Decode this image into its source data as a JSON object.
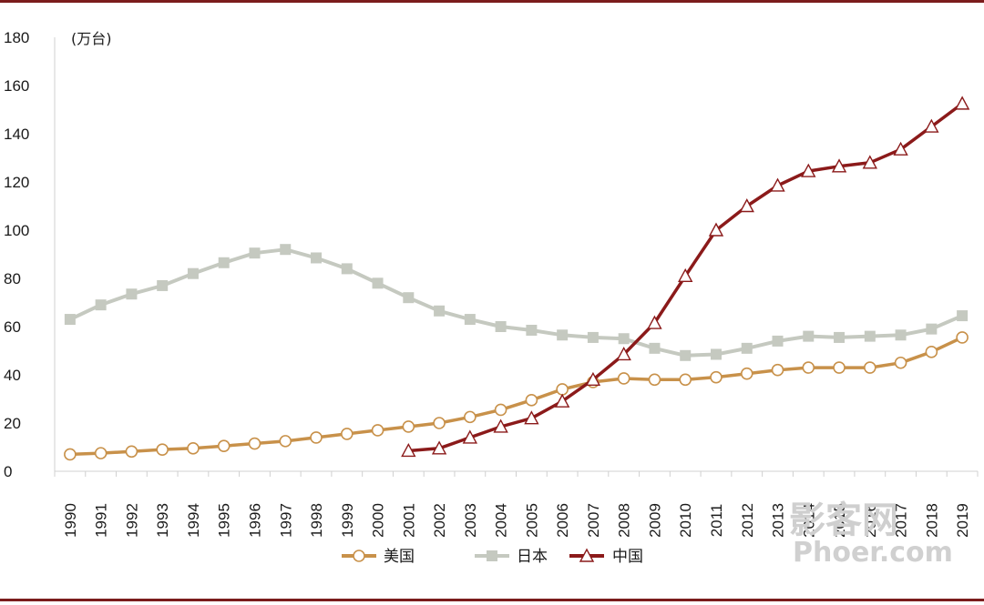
{
  "colors": {
    "frame": "#7b1c1c",
    "usa": "#c8914a",
    "japan": "#c5c9c0",
    "china": "#8b1a1a",
    "axis": "#d0d0d0",
    "watermark": "#cfcfcf",
    "watermark_dot": "#e05050"
  },
  "watermark": {
    "cn": "影客网",
    "en": "Phoer.com"
  },
  "chart_data": {
    "type": "line",
    "unit_label": "(万台)",
    "x": [
      "1990",
      "1991",
      "1992",
      "1993",
      "1994",
      "1995",
      "1996",
      "1997",
      "1998",
      "1999",
      "2000",
      "2001",
      "2002",
      "2003",
      "2004",
      "2005",
      "2006",
      "2007",
      "2008",
      "2009",
      "2010",
      "2011",
      "2012",
      "2013",
      "2014",
      "2015",
      "2016",
      "2017",
      "2018",
      "2019"
    ],
    "ylim": [
      0,
      180
    ],
    "yticks": [
      0,
      20,
      40,
      60,
      80,
      100,
      120,
      140,
      160,
      180
    ],
    "grid": false,
    "legend_position": "bottom-center",
    "series": [
      {
        "name": "美国",
        "marker": "circle",
        "values": [
          7,
          7.5,
          8.2,
          9,
          9.5,
          10.5,
          11.5,
          12.5,
          14,
          15.5,
          17,
          18.5,
          20,
          22.5,
          25.5,
          29.5,
          34,
          37,
          38.5,
          38,
          38,
          39,
          40.5,
          42,
          43,
          43,
          43,
          45,
          49.5,
          55.5
        ]
      },
      {
        "name": "日本",
        "marker": "square",
        "values": [
          63,
          69,
          73.5,
          77,
          82,
          86.5,
          90.5,
          92,
          88.5,
          84,
          78,
          72,
          66.5,
          63,
          60,
          58.5,
          56.5,
          55.5,
          55,
          51,
          48,
          48.5,
          51,
          54,
          56,
          55.5,
          56,
          56.5,
          59,
          64.5
        ]
      },
      {
        "name": "中国",
        "marker": "triangle",
        "values": [
          null,
          null,
          null,
          null,
          null,
          null,
          null,
          null,
          null,
          null,
          null,
          8.5,
          9.5,
          14,
          18.5,
          22,
          29,
          38,
          48.5,
          61.5,
          81,
          100,
          110,
          118.5,
          124.5,
          126.5,
          128,
          133.5,
          143,
          152.5
        ]
      }
    ]
  }
}
